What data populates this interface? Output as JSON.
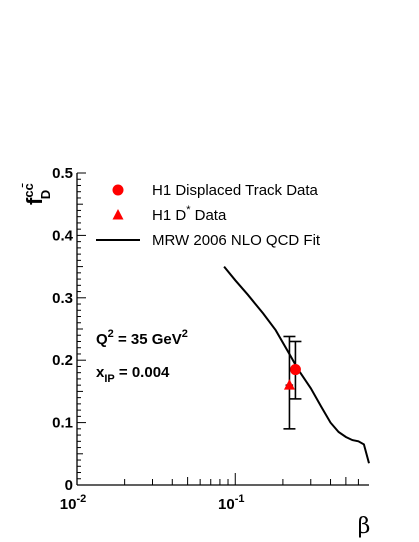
{
  "chart_data": {
    "type": "scatter",
    "x_scale": "log",
    "xlim": [
      0.01,
      0.7
    ],
    "ylim": [
      0,
      0.5
    ],
    "y_ticks": [
      "0.1",
      "0.2",
      "0.3",
      "0.4",
      "0.5"
    ],
    "y_origin_label": "0",
    "x_ticks": [
      {
        "base": "10",
        "exp": "-2"
      },
      {
        "base": "10",
        "exp": "-1"
      }
    ],
    "xlabel": "β",
    "ylabel": {
      "base": "f",
      "sub": "D",
      "sup": "cc̄"
    },
    "annotations": [
      {
        "base": "Q",
        "sup": "2",
        "rest": " = 35 GeV",
        "sup2": "2"
      },
      {
        "base": "x",
        "sub": "IP",
        "rest": " = 0.004"
      }
    ],
    "legend": [
      {
        "marker": "circle",
        "color": "#ff0000",
        "label": "H1 Displaced Track Data"
      },
      {
        "marker": "triangle",
        "color": "#ff0000",
        "label": "H1 D",
        "sup": "*",
        "label_rest": " Data"
      },
      {
        "marker": "line",
        "color": "#000000",
        "label": "MRW 2006 NLO QCD Fit"
      }
    ],
    "series": [
      {
        "name": "H1 Displaced Track Data",
        "marker": "circle",
        "color": "#ff0000",
        "points": [
          {
            "x": 0.24,
            "y": 0.185,
            "xerr": [
              0.225,
              0.255
            ],
            "yerr": [
              0.138,
              0.23
            ]
          }
        ]
      },
      {
        "name": "H1 D* Data",
        "marker": "triangle",
        "color": "#ff0000",
        "points": [
          {
            "x": 0.22,
            "y": 0.16,
            "xerr": [
              0.208,
              0.232
            ],
            "yerr": [
              0.09,
              0.238
            ]
          }
        ]
      },
      {
        "name": "MRW 2006 NLO QCD Fit",
        "marker": "line",
        "color": "#000000",
        "x": [
          0.085,
          0.1,
          0.12,
          0.15,
          0.18,
          0.22,
          0.25,
          0.3,
          0.35,
          0.4,
          0.45,
          0.5,
          0.55,
          0.6,
          0.65,
          0.7
        ],
        "y": [
          0.35,
          0.328,
          0.305,
          0.275,
          0.248,
          0.21,
          0.185,
          0.155,
          0.125,
          0.1,
          0.085,
          0.077,
          0.072,
          0.07,
          0.065,
          0.035
        ]
      }
    ]
  }
}
